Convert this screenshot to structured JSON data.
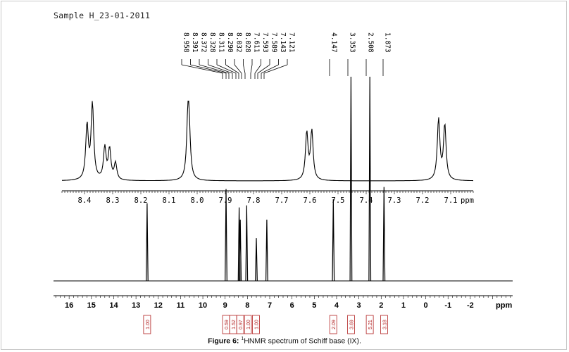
{
  "sample_title": "Sample H_23-01-2011",
  "caption": {
    "label": "Figure 6:",
    "superscript": "1",
    "text": "HNMR spectrum of Schiff base (IX)."
  },
  "colors": {
    "spectrum": "#000000",
    "integral_box": "#b22222",
    "integral_text": "#b22222"
  },
  "chart_data": [
    {
      "type": "line",
      "panel": "expanded",
      "xlabel": "ppm",
      "xlim": [
        8.48,
        7.02
      ],
      "x_reversed": true,
      "ticks": [
        "8.4",
        "8.3",
        "8.2",
        "8.1",
        "8.0",
        "7.9",
        "7.8",
        "7.7",
        "7.6",
        "7.5",
        "7.4",
        "7.3",
        "7.2",
        "7.1"
      ],
      "tick_values": [
        8.4,
        8.3,
        8.2,
        8.1,
        8.0,
        7.9,
        7.8,
        7.7,
        7.6,
        7.5,
        7.4,
        7.3,
        7.2,
        7.1
      ],
      "peaks": [
        {
          "ppm": 8.391,
          "height": 0.71
        },
        {
          "ppm": 8.372,
          "height": 1.0
        },
        {
          "ppm": 8.328,
          "height": 0.42
        },
        {
          "ppm": 8.311,
          "height": 0.4
        },
        {
          "ppm": 8.29,
          "height": 0.22
        },
        {
          "ppm": 8.032,
          "height": 0.98
        },
        {
          "ppm": 8.028,
          "height": 0.28
        },
        {
          "ppm": 7.611,
          "height": 0.62
        },
        {
          "ppm": 7.593,
          "height": 0.64
        },
        {
          "ppm": 7.143,
          "height": 0.8
        },
        {
          "ppm": 7.121,
          "height": 0.72
        }
      ]
    },
    {
      "type": "line",
      "panel": "full",
      "xlabel": "ppm",
      "xlim": [
        16.7,
        -3.9
      ],
      "x_reversed": true,
      "ticks": [
        "16",
        "15",
        "14",
        "13",
        "12",
        "11",
        "10",
        "9",
        "8",
        "7",
        "6",
        "5",
        "4",
        "3",
        "2",
        "1",
        "0",
        "-1",
        "-2"
      ],
      "tick_values": [
        16,
        15,
        14,
        13,
        12,
        11,
        10,
        9,
        8,
        7,
        6,
        5,
        4,
        3,
        2,
        1,
        0,
        -1,
        -2
      ],
      "peak_labels": [
        "8.958",
        "8.391",
        "8.372",
        "8.328",
        "8.311",
        "8.290",
        "8.032",
        "8.028",
        "7.611",
        "7.593",
        "7.589",
        "7.143",
        "7.121",
        "4.147",
        "3.353",
        "2.508",
        "1.873"
      ],
      "peak_label_values": [
        8.958,
        8.391,
        8.372,
        8.328,
        8.311,
        8.29,
        8.032,
        8.028,
        7.611,
        7.593,
        7.589,
        7.143,
        7.121,
        4.147,
        3.353,
        2.508,
        1.873
      ],
      "peaks": [
        {
          "ppm": 12.5,
          "height": 0.38
        },
        {
          "ppm": 8.958,
          "height": 0.45
        },
        {
          "ppm": 8.372,
          "height": 0.36
        },
        {
          "ppm": 8.32,
          "height": 0.3
        },
        {
          "ppm": 8.032,
          "height": 0.37
        },
        {
          "ppm": 7.6,
          "height": 0.21
        },
        {
          "ppm": 7.13,
          "height": 0.3
        },
        {
          "ppm": 4.147,
          "height": 0.4
        },
        {
          "ppm": 3.353,
          "height": 1.0
        },
        {
          "ppm": 2.508,
          "height": 1.0
        },
        {
          "ppm": 1.873,
          "height": 0.46
        }
      ],
      "integrals": [
        {
          "ppm": 12.5,
          "value": "1.00"
        },
        {
          "ppm": 8.96,
          "value": "0.59"
        },
        {
          "ppm": 8.64,
          "value": "1.52"
        },
        {
          "ppm": 8.32,
          "value": "0.97"
        },
        {
          "ppm": 7.98,
          "value": "1.00"
        },
        {
          "ppm": 7.62,
          "value": "1.00"
        },
        {
          "ppm": 4.15,
          "value": "2.09"
        },
        {
          "ppm": 3.35,
          "value": "3.69"
        },
        {
          "ppm": 2.51,
          "value": "5.21"
        },
        {
          "ppm": 1.87,
          "value": "3.18"
        }
      ]
    }
  ]
}
